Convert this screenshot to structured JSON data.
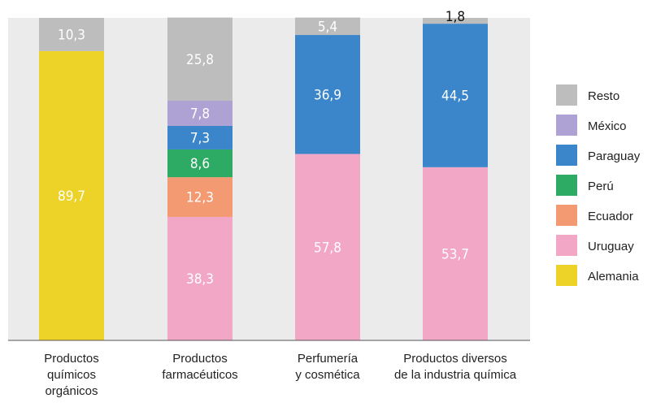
{
  "chart_data": {
    "type": "stacked-bar",
    "title": "",
    "xlabel": "",
    "ylabel": "",
    "ylim": [
      0,
      100
    ],
    "grid": false,
    "legend_position": "right",
    "categories": [
      [
        "Productos",
        "químicos",
        "orgánicos"
      ],
      [
        "Productos",
        "farmacéuticos"
      ],
      [
        "Perfumería",
        "y cosmética"
      ],
      [
        "Productos diversos",
        "de la industria química"
      ]
    ],
    "series": [
      {
        "name": "Alemania",
        "color": "#EDD227",
        "values": [
          89.7,
          null,
          null,
          null
        ]
      },
      {
        "name": "Uruguay",
        "color": "#F2A7C7",
        "values": [
          null,
          38.3,
          57.8,
          53.7
        ]
      },
      {
        "name": "Ecuador",
        "color": "#F39A73",
        "values": [
          null,
          12.3,
          null,
          null
        ]
      },
      {
        "name": "Perú",
        "color": "#2DAA63",
        "values": [
          null,
          8.6,
          null,
          null
        ]
      },
      {
        "name": "Paraguay",
        "color": "#3B86CB",
        "values": [
          null,
          7.3,
          36.9,
          44.5
        ]
      },
      {
        "name": "México",
        "color": "#ADA2D3",
        "values": [
          null,
          7.8,
          null,
          null
        ]
      },
      {
        "name": "Resto",
        "color": "#BDBDBD",
        "values": [
          10.3,
          25.8,
          5.4,
          1.8
        ]
      }
    ],
    "value_labels": [
      [
        "89,7",
        null,
        null,
        null,
        null,
        null,
        "10,3"
      ],
      [
        null,
        "38,3",
        "12,3",
        "8,6",
        "7,3",
        "7,8",
        "25,8"
      ],
      [
        null,
        "57,8",
        null,
        null,
        "36,9",
        null,
        "5,4"
      ],
      [
        null,
        "53,7",
        null,
        null,
        "44,5",
        null,
        "1,8"
      ]
    ],
    "legend_order": [
      "Resto",
      "México",
      "Paraguay",
      "Perú",
      "Ecuador",
      "Uruguay",
      "Alemania"
    ],
    "plot_background": "#EBEBEB"
  }
}
